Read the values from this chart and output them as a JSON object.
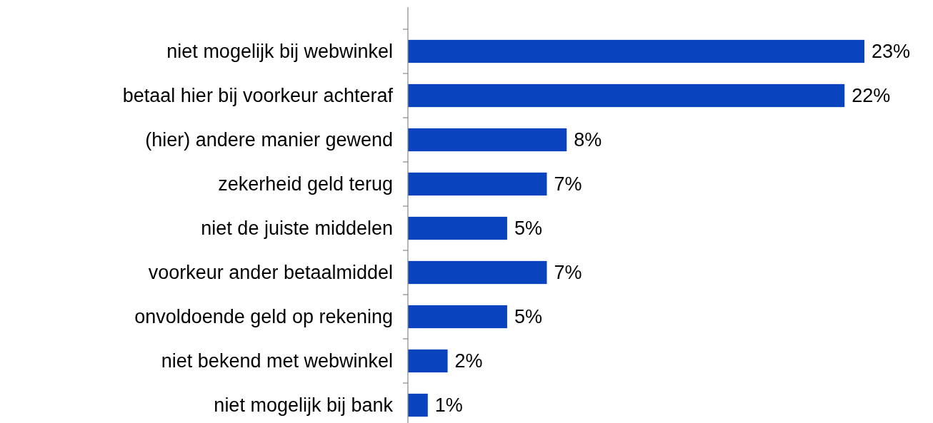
{
  "chart_data": {
    "type": "bar",
    "orientation": "horizontal",
    "categories": [
      "niet mogelijk bij webwinkel",
      "betaal hier bij voorkeur achteraf",
      "(hier) andere manier gewend",
      "zekerheid geld terug",
      "niet de juiste middelen",
      "voorkeur ander betaalmiddel",
      "onvoldoende geld op rekening",
      "niet bekend met webwinkel",
      "niet mogelijk bij bank"
    ],
    "values": [
      23,
      22,
      8,
      7,
      5,
      7,
      5,
      2,
      1
    ],
    "value_labels": [
      "23%",
      "22%",
      "8%",
      "7%",
      "5%",
      "7%",
      "5%",
      "2%",
      "1%"
    ],
    "color": "#0a43be"
  }
}
